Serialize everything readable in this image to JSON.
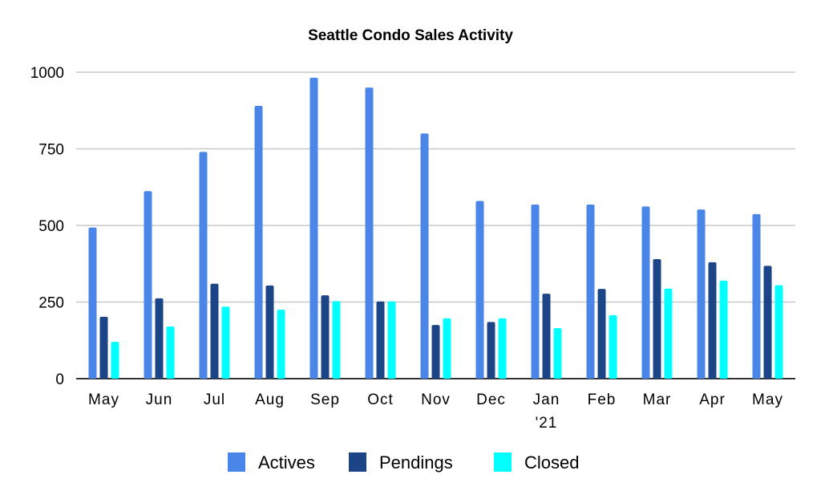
{
  "chart_data": {
    "type": "bar",
    "title": "Seattle Condo Sales Activity",
    "categories": [
      "May",
      "Jun",
      "Jul",
      "Aug",
      "Sep",
      "Oct",
      "Nov",
      "Dec",
      "Jan\n'21",
      "Feb",
      "Mar",
      "Apr",
      "May"
    ],
    "series": [
      {
        "name": "Actives",
        "color": "#4a86e8",
        "values": [
          493,
          612,
          740,
          890,
          982,
          950,
          800,
          580,
          568,
          568,
          562,
          552,
          537
        ]
      },
      {
        "name": "Pendings",
        "color": "#1c4587",
        "values": [
          202,
          262,
          310,
          304,
          272,
          252,
          175,
          185,
          277,
          293,
          390,
          380,
          368
        ]
      },
      {
        "name": "Closed",
        "color": "#00ffff",
        "values": [
          120,
          170,
          235,
          225,
          253,
          252,
          197,
          197,
          165,
          207,
          294,
          320,
          305
        ]
      }
    ],
    "yticks": [
      "0",
      "250",
      "500",
      "750",
      "1000"
    ],
    "ylim": [
      0,
      1000
    ],
    "xlabel": "",
    "ylabel": "",
    "grid": true,
    "legend": "bottom"
  }
}
